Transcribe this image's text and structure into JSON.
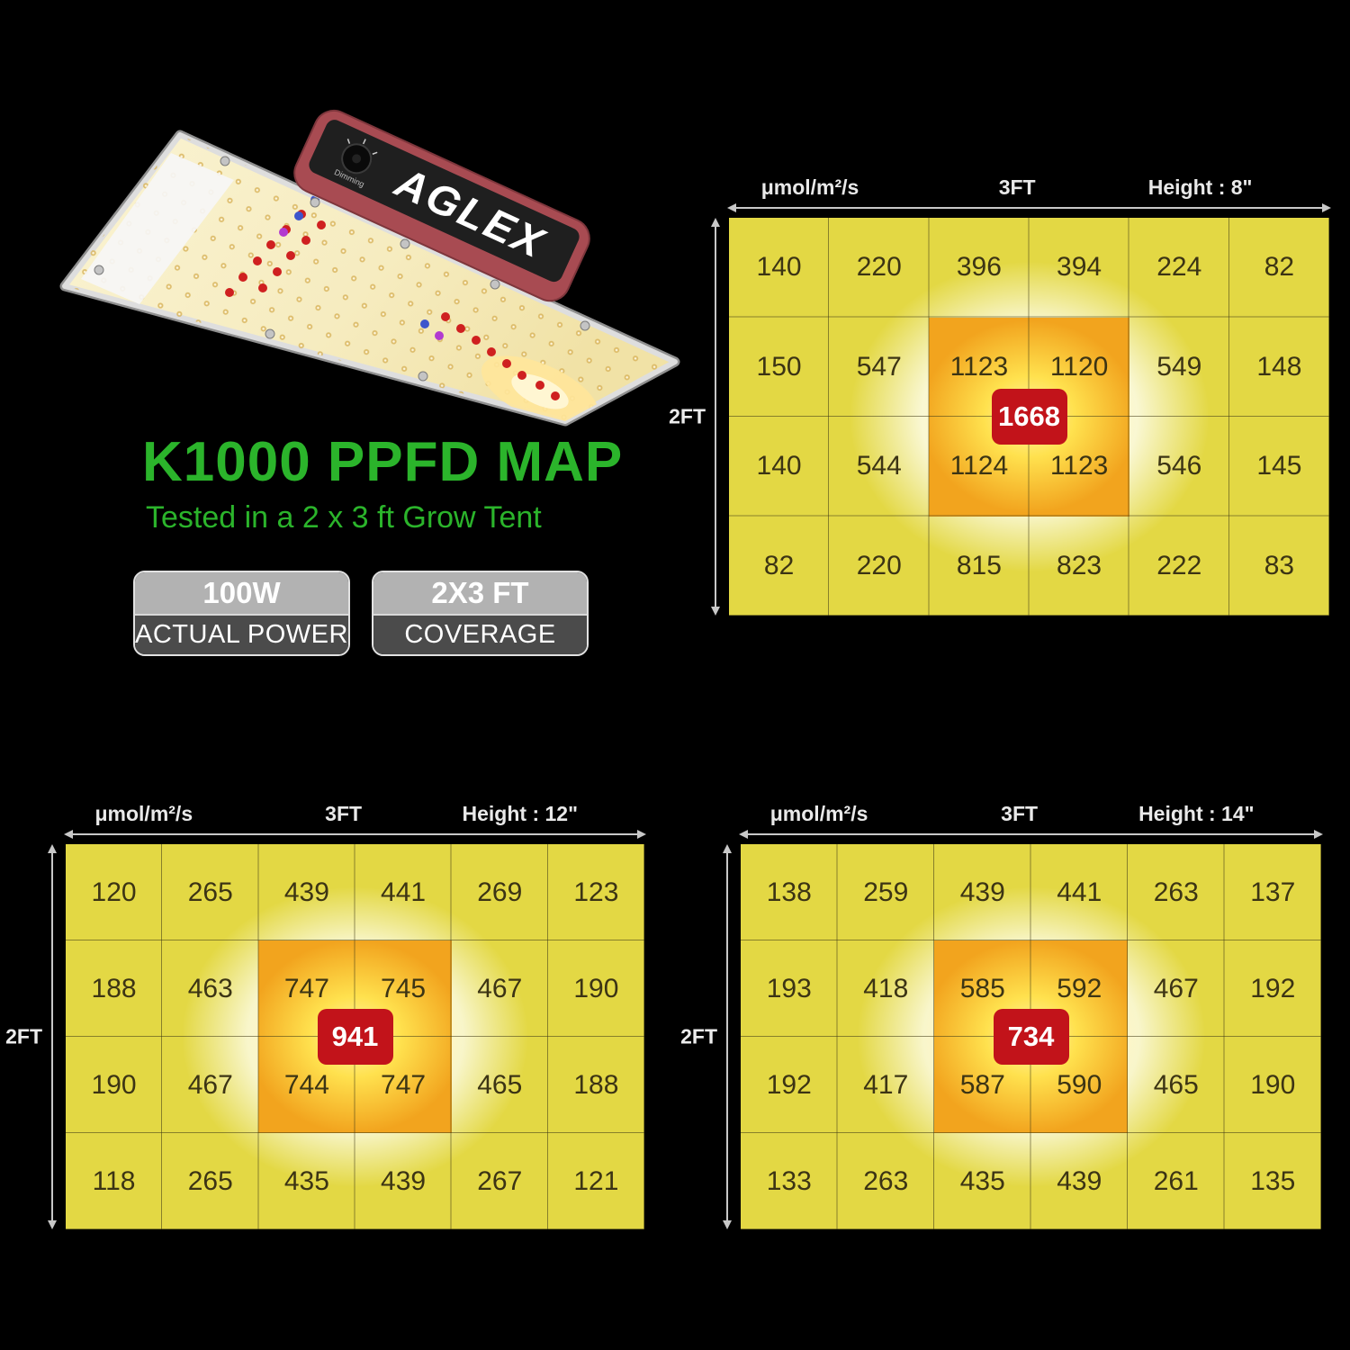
{
  "product": {
    "brand": "AGLEX",
    "dimmer_label": "Dimming"
  },
  "header": {
    "title": "K1000 PPFD MAP",
    "subtitle": "Tested in a 2 x 3 ft Grow Tent",
    "badges": [
      {
        "value": "100W",
        "label": "ACTUAL POWER"
      },
      {
        "value": "2X3 FT",
        "label": "COVERAGE"
      }
    ]
  },
  "colors": {
    "accent_green": "#2bb42b",
    "cell_yellow": "#e3d844",
    "hot_orange": "#f2a41e",
    "peak_red": "#c2131a"
  },
  "chart_data": [
    {
      "type": "heatmap",
      "unit_label": "μmol/m²/s",
      "width_label": "3FT",
      "height_label": "Height : 8\"",
      "depth_label": "2FT",
      "columns": 6,
      "rows_count": 4,
      "hot_region": "cols 3-4 x rows 2-3",
      "center_value": 1668,
      "rows": [
        [
          140,
          220,
          396,
          394,
          224,
          82
        ],
        [
          150,
          547,
          1123,
          1120,
          549,
          148
        ],
        [
          140,
          544,
          1124,
          1123,
          546,
          145
        ],
        [
          82,
          220,
          815,
          823,
          222,
          83
        ]
      ]
    },
    {
      "type": "heatmap",
      "unit_label": "μmol/m²/s",
      "width_label": "3FT",
      "height_label": "Height : 12\"",
      "depth_label": "2FT",
      "columns": 6,
      "rows_count": 4,
      "hot_region": "cols 3-4 x rows 2-3",
      "center_value": 941,
      "rows": [
        [
          120,
          265,
          439,
          441,
          269,
          123
        ],
        [
          188,
          463,
          747,
          745,
          467,
          190
        ],
        [
          190,
          467,
          744,
          747,
          465,
          188
        ],
        [
          118,
          265,
          435,
          439,
          267,
          121
        ]
      ]
    },
    {
      "type": "heatmap",
      "unit_label": "μmol/m²/s",
      "width_label": "3FT",
      "height_label": "Height : 14\"",
      "depth_label": "2FT",
      "columns": 6,
      "rows_count": 4,
      "hot_region": "cols 3-4 x rows 2-3",
      "center_value": 734,
      "rows": [
        [
          138,
          259,
          439,
          441,
          263,
          137
        ],
        [
          193,
          418,
          585,
          592,
          467,
          192
        ],
        [
          192,
          417,
          587,
          590,
          465,
          190
        ],
        [
          133,
          263,
          435,
          439,
          261,
          135
        ]
      ]
    }
  ]
}
